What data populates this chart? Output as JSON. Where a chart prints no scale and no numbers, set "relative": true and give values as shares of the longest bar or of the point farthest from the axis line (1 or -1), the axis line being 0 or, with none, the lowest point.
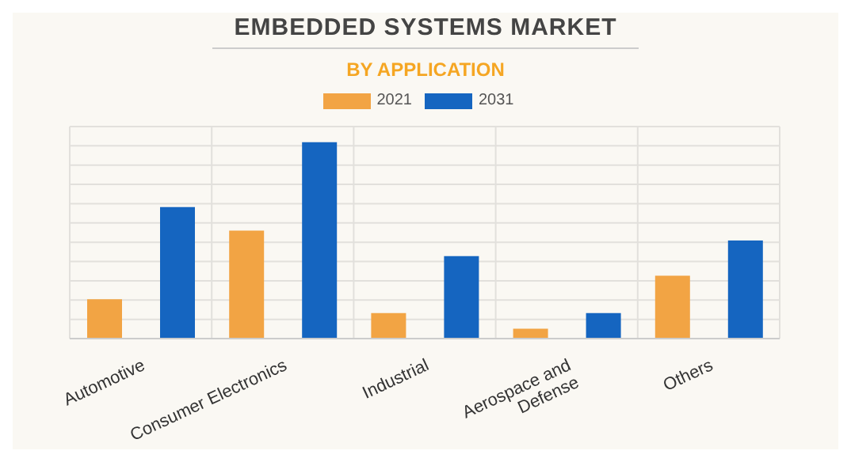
{
  "chart_data": {
    "type": "bar",
    "title": "EMBEDDED SYSTEMS MARKET",
    "subtitle": "BY APPLICATION",
    "categories": [
      "Automotive",
      "Consumer Electronics",
      "Industrial",
      "Aerospace and Defense",
      "Others"
    ],
    "series": [
      {
        "name": "2021",
        "color": "#f2a444",
        "values": [
          0.2,
          0.55,
          0.13,
          0.05,
          0.32
        ]
      },
      {
        "name": "2031",
        "color": "#1565c0",
        "values": [
          0.67,
          1.0,
          0.42,
          0.13,
          0.5
        ]
      }
    ],
    "relative": true,
    "grid": true,
    "legend": "top"
  }
}
